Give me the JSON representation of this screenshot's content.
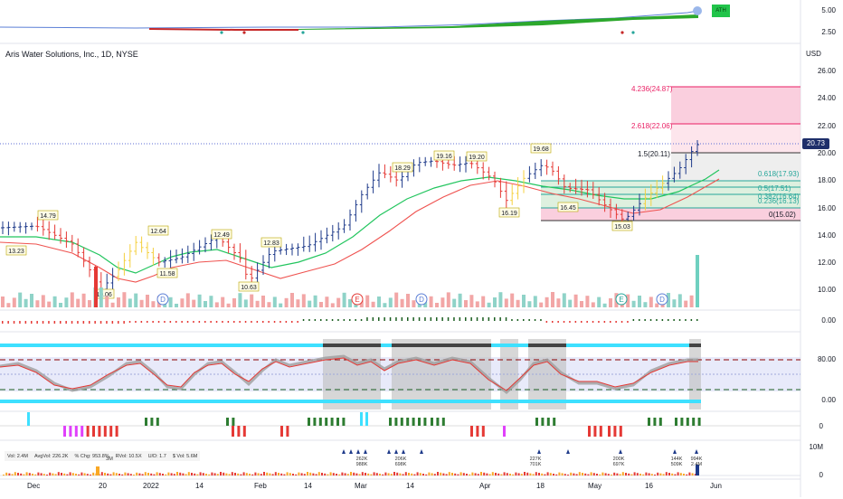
{
  "header": {
    "title": "Aris Water Solutions, Inc., 1D, NYSE",
    "currency": "USD",
    "last_price": "20.73",
    "ath_badge": "ATH"
  },
  "top_panel_axis": [
    "5.00",
    "2.50"
  ],
  "price_axis": [
    "26.00",
    "24.00",
    "22.00",
    "20.00",
    "18.00",
    "16.00",
    "14.00",
    "12.00",
    "10.00"
  ],
  "fib_levels": [
    {
      "label": "4.236(24.87)",
      "color": "#e91e63"
    },
    {
      "label": "2.618(22.06)",
      "color": "#e91e63"
    },
    {
      "label": "1.5(20.11)",
      "color": "#131722"
    },
    {
      "label": "0.618(17.93)",
      "color": "#26a69a"
    },
    {
      "label": "0.5(17.51)",
      "color": "#26a69a"
    },
    {
      "label": "0.382(16.64)",
      "color": "#26a69a"
    },
    {
      "label": "0.236(16.13)",
      "color": "#26a69a"
    },
    {
      "label": "0(15.02)",
      "color": "#131722"
    }
  ],
  "price_markers": [
    "14.79",
    "13.23",
    "12.64",
    "11.58",
    "10.06",
    "12.49",
    "12.83",
    "10.63",
    "18.29",
    "19.16",
    "19.20",
    "16.19",
    "19.68",
    "16.45",
    "15.03"
  ],
  "event_markers": [
    "D",
    "E",
    "D",
    "E",
    "D"
  ],
  "osc_axis_1": "0.00",
  "stoch_axis": [
    "80.00",
    "0.00"
  ],
  "bar_axis": "0",
  "vol_axis": [
    "10M",
    "0"
  ],
  "vol_labels": [
    {
      "top": "3M",
      "bottom": ""
    },
    {
      "top": "262K",
      "bottom": "988K"
    },
    {
      "top": "206K",
      "bottom": "698K"
    },
    {
      "top": "227K",
      "bottom": "701K"
    },
    {
      "top": "200K",
      "bottom": "697K"
    },
    {
      "top": "144K",
      "bottom": "509K"
    },
    {
      "top": "994K",
      "bottom": "2.4M"
    }
  ],
  "stats": [
    "Vol: 2.4M",
    "AvgVol: 226.2K",
    "% Chg: 953.8%",
    "RVol: 10.5X",
    "U/D: 1.7",
    "$ Vol: 5.6M"
  ],
  "x_axis": [
    {
      "label": "Dec"
    },
    {
      "label": "20"
    },
    {
      "label": "2022"
    },
    {
      "label": "14"
    },
    {
      "label": "Feb"
    },
    {
      "label": "14"
    },
    {
      "label": "Mar"
    },
    {
      "label": "14"
    },
    {
      "label": "Apr"
    },
    {
      "label": "18"
    },
    {
      "label": "May"
    },
    {
      "label": "16"
    },
    {
      "label": "Jun"
    }
  ],
  "colors": {
    "up": "#1e3a8a",
    "down": "#e53935",
    "green": "#22b14c",
    "pink": "#f8bbd0",
    "teal": "#26a69a"
  }
}
